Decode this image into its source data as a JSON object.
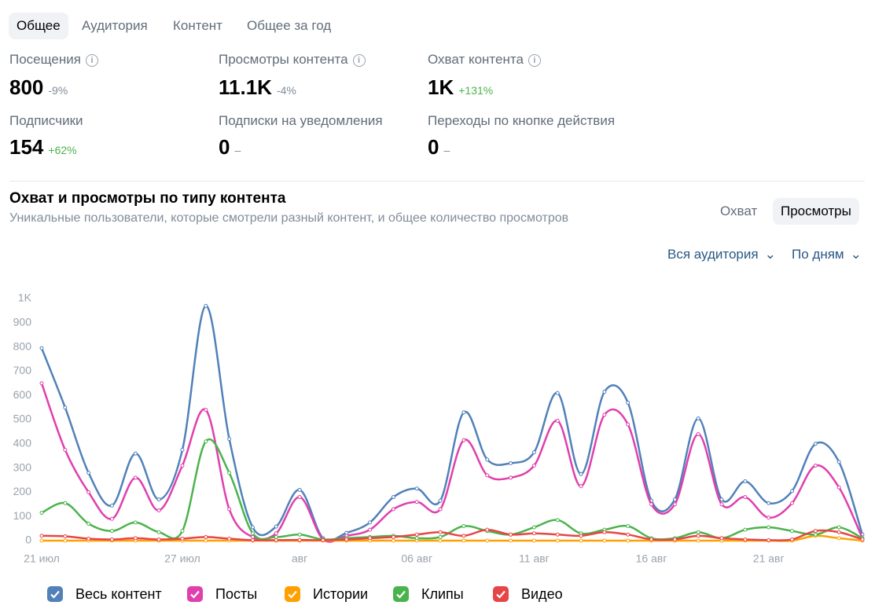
{
  "tabs": [
    "Общее",
    "Аудитория",
    "Контент",
    "Общее за год"
  ],
  "stats": [
    {
      "label": "Посещения",
      "value": "800",
      "change": "-9%"
    },
    {
      "label": "Просмотры контента",
      "value": "11.1K",
      "change": "-4%"
    },
    {
      "label": "Охват контента",
      "value": "1K",
      "change": "+131%"
    },
    {
      "label": "Подписчики",
      "value": "154",
      "change": "+62%"
    },
    {
      "label": "Подписки на уведомления",
      "value": "0",
      "change": "–"
    },
    {
      "label": "Переходы по кнопке действия",
      "value": "0",
      "change": "–"
    }
  ],
  "section_title": "Охват и просмотры по типу контента",
  "section_subtitle": "Уникальные пользователи, которые смотрели разный контент, и общее количество просмотров",
  "toggle": [
    "Охват",
    "Просмотры"
  ],
  "filters": [
    "Вся аудитория",
    "По дням"
  ],
  "chart_data": {
    "type": "line",
    "categories": [
      "21 июл",
      null,
      null,
      null,
      null,
      null,
      "27 июл",
      null,
      null,
      null,
      null,
      "авг",
      null,
      null,
      null,
      null,
      "06 авг",
      null,
      null,
      null,
      null,
      "11 авг",
      null,
      null,
      null,
      null,
      "16 авг",
      null,
      null,
      null,
      null,
      "21 авг",
      null,
      null,
      null,
      null
    ],
    "ylim": [
      0,
      1000
    ],
    "yticks": [
      0,
      100,
      200,
      300,
      400,
      500,
      600,
      700,
      800,
      900,
      {
        "value": 1000,
        "label": "1K"
      }
    ],
    "series": [
      {
        "name": "Весь контент",
        "color": "#5181b8",
        "values": [
          795,
          550,
          280,
          145,
          360,
          170,
          375,
          970,
          420,
          55,
          58,
          210,
          10,
          32,
          75,
          180,
          215,
          165,
          530,
          335,
          320,
          365,
          610,
          275,
          615,
          570,
          165,
          170,
          505,
          170,
          245,
          155,
          205,
          400,
          325,
          25
        ]
      },
      {
        "name": "Посты",
        "color": "#e03fad",
        "values": [
          650,
          375,
          200,
          90,
          260,
          125,
          310,
          540,
          130,
          15,
          30,
          180,
          5,
          20,
          45,
          130,
          160,
          130,
          415,
          270,
          260,
          310,
          495,
          225,
          520,
          480,
          150,
          150,
          440,
          150,
          180,
          95,
          155,
          310,
          220,
          10
        ]
      },
      {
        "name": "Истории",
        "color": "#ffa000",
        "values": [
          0,
          0,
          0,
          0,
          0,
          0,
          0,
          0,
          0,
          0,
          0,
          0,
          0,
          0,
          0,
          0,
          0,
          0,
          0,
          0,
          0,
          0,
          0,
          0,
          0,
          0,
          0,
          0,
          0,
          0,
          0,
          0,
          0,
          20,
          10,
          0
        ]
      },
      {
        "name": "Клипы",
        "color": "#4bb34b",
        "values": [
          115,
          155,
          70,
          40,
          75,
          35,
          40,
          410,
          280,
          30,
          15,
          25,
          5,
          10,
          15,
          20,
          10,
          15,
          60,
          40,
          25,
          55,
          85,
          30,
          45,
          60,
          10,
          10,
          35,
          10,
          45,
          55,
          40,
          25,
          55,
          10
        ]
      },
      {
        "name": "Видео",
        "color": "#e64646",
        "values": [
          20,
          18,
          8,
          5,
          10,
          5,
          8,
          15,
          8,
          2,
          2,
          3,
          2,
          5,
          10,
          15,
          25,
          35,
          20,
          45,
          25,
          30,
          25,
          20,
          35,
          25,
          5,
          5,
          20,
          10,
          5,
          2,
          5,
          40,
          35,
          5
        ]
      }
    ]
  }
}
